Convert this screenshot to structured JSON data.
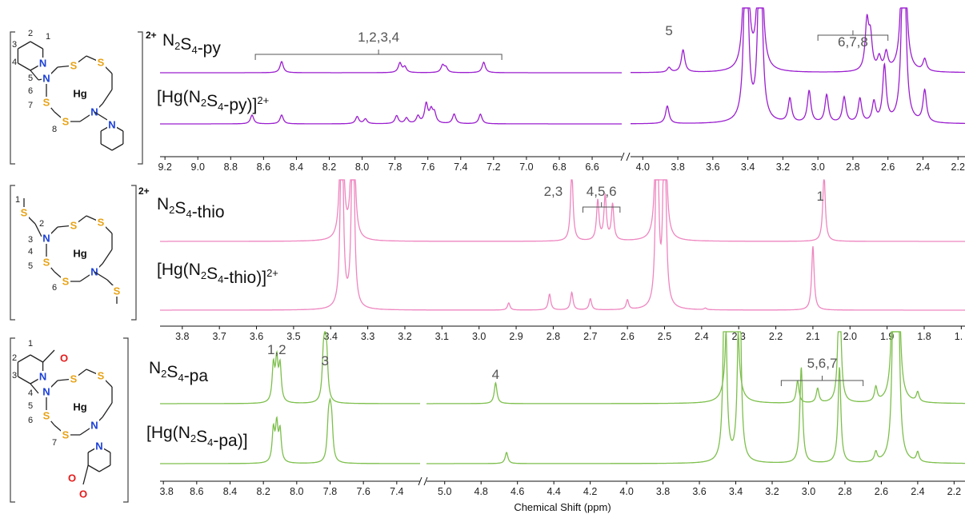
{
  "xlabel": "Chemical Shift (ppm)",
  "colors": {
    "py": "#9b1fcf",
    "thio": "#ee86c0",
    "pa": "#7dbf4c",
    "N": "#1a3fd6",
    "S": "#e8a317",
    "O": "#e41a1a"
  },
  "chart_data": [
    {
      "type": "line",
      "charge": "2+",
      "labels": [
        "N2S4-py",
        "[Hg(N2S4-py)]2+"
      ],
      "ticks_left": [
        9.2,
        9.0,
        8.8,
        8.6,
        8.4,
        8.2,
        8.0,
        7.8,
        7.6,
        7.4,
        7.2,
        7.0,
        6.8,
        6.6
      ],
      "ticks_right": [
        4.0,
        3.8,
        3.6,
        3.4,
        3.2,
        3.0,
        2.8,
        2.6,
        2.4,
        2.2
      ],
      "annotations": [
        {
          "text": "1,2,3,4",
          "ppm": [
            8.65,
            7.15
          ]
        },
        {
          "text": "5",
          "ppm": 3.85
        },
        {
          "text": "6,7,8",
          "ppm": [
            3.0,
            2.6
          ]
        }
      ],
      "series": [
        {
          "name": "N2S4-py",
          "peaks": [
            [
              8.49,
              14
            ],
            [
              7.77,
              12
            ],
            [
              7.74,
              7
            ],
            [
              7.51,
              9
            ],
            [
              7.49,
              6
            ],
            [
              7.26,
              13
            ],
            [
              3.85,
              6
            ],
            [
              3.77,
              28
            ],
            [
              3.41,
              300
            ],
            [
              3.33,
              300
            ],
            [
              2.72,
              60
            ],
            [
              2.7,
              40
            ],
            [
              2.65,
              16
            ],
            [
              2.61,
              22
            ],
            [
              2.51,
              300
            ],
            [
              2.39,
              15
            ]
          ]
        },
        {
          "name": "[Hg(N2S4-py)]2+",
          "peaks": [
            [
              8.67,
              11
            ],
            [
              8.49,
              11
            ],
            [
              8.03,
              9
            ],
            [
              7.98,
              6
            ],
            [
              7.79,
              10
            ],
            [
              7.73,
              7
            ],
            [
              7.66,
              9
            ],
            [
              7.61,
              24
            ],
            [
              7.58,
              15
            ],
            [
              7.56,
              12
            ],
            [
              7.44,
              12
            ],
            [
              7.28,
              12
            ],
            [
              3.86,
              22
            ],
            [
              3.41,
              300
            ],
            [
              3.33,
              300
            ],
            [
              3.16,
              30
            ],
            [
              3.05,
              40
            ],
            [
              2.95,
              35
            ],
            [
              2.85,
              32
            ],
            [
              2.76,
              30
            ],
            [
              2.68,
              25
            ],
            [
              2.62,
              70
            ],
            [
              2.51,
              300
            ],
            [
              2.39,
              40
            ]
          ]
        }
      ]
    },
    {
      "type": "line",
      "charge": "2+",
      "labels": [
        "N2S4-thio",
        "[Hg(N2S4-thio)]2+"
      ],
      "ticks": [
        3.8,
        3.7,
        3.6,
        3.5,
        3.4,
        3.3,
        3.2,
        3.1,
        3.0,
        2.9,
        2.8,
        2.7,
        2.6,
        2.5,
        2.4,
        2.3,
        2.2,
        2.1,
        2.0,
        1.9,
        1.8,
        "1."
      ],
      "annotations": [
        {
          "text": "2,3",
          "ppm": 2.8
        },
        {
          "text": "4,5,6",
          "ppm": [
            2.72,
            2.62
          ]
        },
        {
          "text": "1",
          "ppm": 2.08
        }
      ],
      "series": [
        {
          "name": "N2S4-thio",
          "peaks": [
            [
              3.37,
              300
            ],
            [
              3.34,
              300
            ],
            [
              2.75,
              90
            ],
            [
              2.68,
              50
            ],
            [
              2.66,
              55
            ],
            [
              2.64,
              45
            ],
            [
              2.52,
              300
            ],
            [
              2.5,
              300
            ],
            [
              2.07,
              85
            ]
          ]
        },
        {
          "name": "[Hg(N2S4-thio)]2+",
          "peaks": [
            [
              3.37,
              300
            ],
            [
              3.34,
              300
            ],
            [
              2.92,
              9
            ],
            [
              2.81,
              20
            ],
            [
              2.75,
              22
            ],
            [
              2.7,
              14
            ],
            [
              2.6,
              12
            ],
            [
              2.52,
              300
            ],
            [
              2.5,
              300
            ],
            [
              2.39,
              2
            ],
            [
              2.1,
              80
            ]
          ]
        }
      ]
    },
    {
      "type": "line",
      "charge": "",
      "labels": [
        "N2S4-pa",
        "[Hg(N2S4-pa)]"
      ],
      "ticks_left": [
        "3.8",
        8.6,
        8.4,
        8.2,
        8.0,
        7.8,
        7.6,
        7.4
      ],
      "ticks_right": [
        5.0,
        4.8,
        4.6,
        4.4,
        4.2,
        4.0,
        3.8,
        3.6,
        3.4,
        3.2,
        3.0,
        2.8,
        2.6,
        2.4,
        2.2
      ],
      "ticks_top": [
        2.3,
        2.2,
        2.1,
        2.0,
        1.9
      ],
      "annotations": [
        {
          "text": "1,2",
          "ppm": 8.12
        },
        {
          "text": "3",
          "ppm": 7.83
        },
        {
          "text": "4",
          "ppm": 4.72
        },
        {
          "text": "5,6,7",
          "ppm": [
            3.15,
            2.7
          ]
        }
      ],
      "series": [
        {
          "name": "N2S4-pa",
          "peaks": [
            [
              8.14,
              45
            ],
            [
              8.12,
              50
            ],
            [
              8.1,
              44
            ],
            [
              7.84,
              48
            ],
            [
              7.83,
              50
            ],
            [
              7.82,
              46
            ],
            [
              4.72,
              26
            ],
            [
              3.44,
              300
            ],
            [
              3.4,
              300
            ],
            [
              3.06,
              28
            ],
            [
              2.95,
              18
            ],
            [
              2.83,
              170
            ],
            [
              2.63,
              18
            ],
            [
              2.53,
              300
            ],
            [
              2.51,
              300
            ],
            [
              2.4,
              12
            ]
          ]
        },
        {
          "name": "[Hg(N2S4-pa)]",
          "peaks": [
            [
              8.14,
              40
            ],
            [
              8.12,
              45
            ],
            [
              8.1,
              38
            ],
            [
              7.81,
              42
            ],
            [
              7.8,
              44
            ],
            [
              7.79,
              40
            ],
            [
              4.66,
              14
            ],
            [
              3.46,
              300
            ],
            [
              3.38,
              300
            ],
            [
              3.04,
              120
            ],
            [
              2.83,
              120
            ],
            [
              2.63,
              12
            ],
            [
              2.53,
              300
            ],
            [
              2.51,
              300
            ],
            [
              2.4,
              12
            ]
          ]
        }
      ]
    }
  ]
}
